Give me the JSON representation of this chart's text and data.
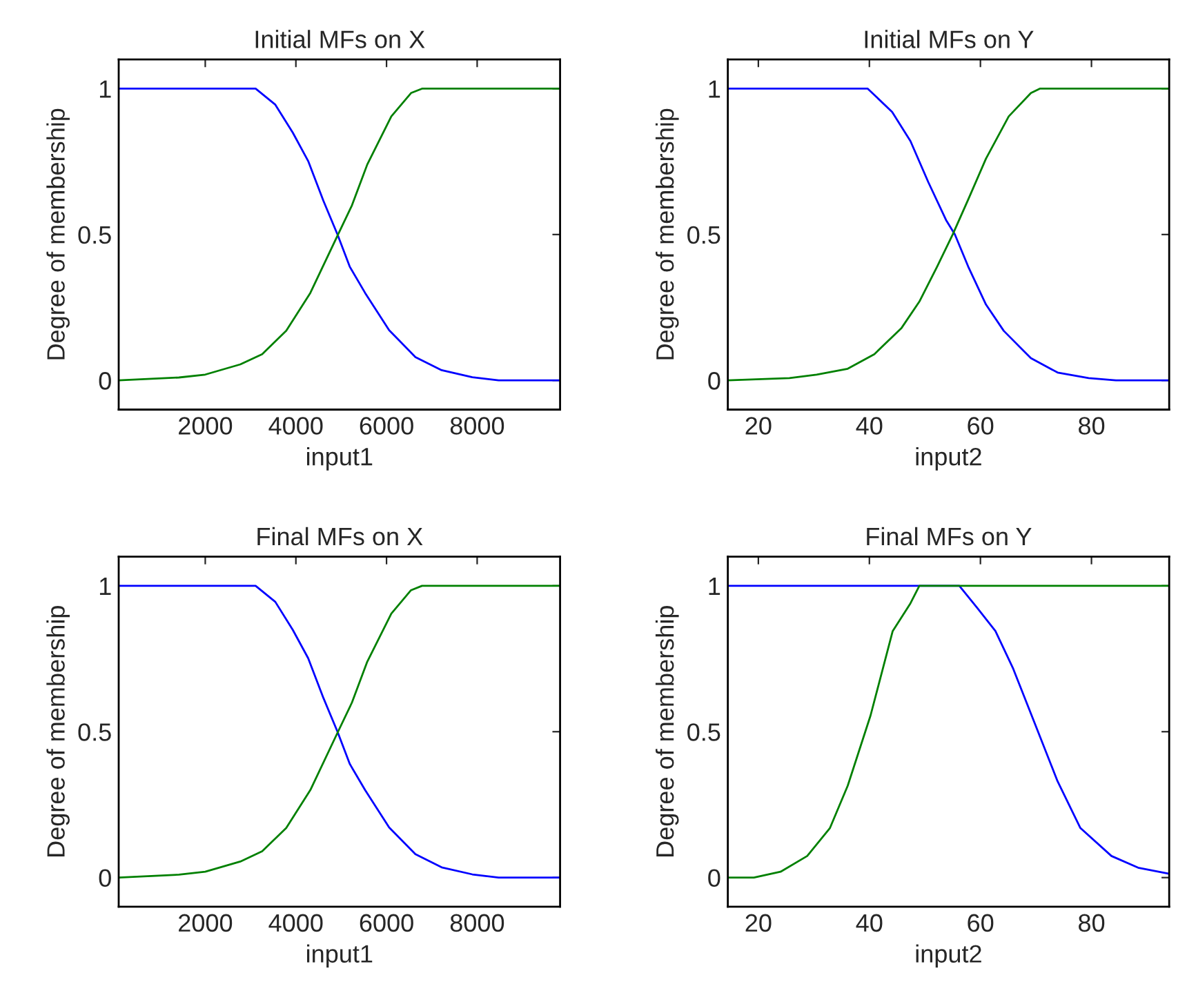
{
  "chart_data": [
    {
      "type": "line",
      "title": "Initial MFs on X",
      "xlabel": "input1",
      "ylabel": "Degree of membership",
      "xlim": [
        90,
        9830
      ],
      "xticks": [
        2000,
        4000,
        6000,
        8000
      ],
      "ylim": [
        -0.1,
        1.1
      ],
      "yticks": [
        0,
        0.5,
        1
      ],
      "grid": false,
      "legend": false,
      "series": [
        {
          "color": "#0000ff",
          "x": [
            90,
            3111,
            3546,
            3932,
            4271,
            4609,
            4918,
            5188,
            5527,
            6058,
            6638,
            7217,
            7894,
            8473,
            9830
          ],
          "values": [
            1,
            1,
            0.945,
            0.849,
            0.752,
            0.615,
            0.5,
            0.39,
            0.3,
            0.172,
            0.08,
            0.035,
            0.011,
            0,
            0
          ]
        },
        {
          "color": "#008000",
          "x": [
            90,
            1420,
            2000,
            2773,
            3256,
            3787,
            4319,
            4899,
            5237,
            5575,
            6106,
            6541,
            6783,
            9830
          ],
          "values": [
            0,
            0.01,
            0.02,
            0.055,
            0.09,
            0.17,
            0.3,
            0.49,
            0.6,
            0.74,
            0.905,
            0.985,
            1,
            1
          ]
        }
      ]
    },
    {
      "type": "line",
      "title": "Initial MFs on Y",
      "xlabel": "input2",
      "ylabel": "Degree of membership",
      "xlim": [
        14.5,
        94
      ],
      "xticks": [
        20,
        40,
        60,
        80
      ],
      "ylim": [
        -0.1,
        1.1
      ],
      "yticks": [
        0,
        0.5,
        1
      ],
      "grid": false,
      "legend": false,
      "series": [
        {
          "color": "#0000ff",
          "x": [
            14.5,
            39.7,
            44.1,
            47.4,
            50.6,
            53.8,
            55.4,
            57.8,
            61.0,
            64.2,
            69.1,
            73.9,
            79.5,
            84.4,
            94
          ],
          "values": [
            1,
            1,
            0.92,
            0.82,
            0.68,
            0.55,
            0.5,
            0.39,
            0.26,
            0.17,
            0.076,
            0.027,
            0.008,
            0,
            0
          ]
        },
        {
          "color": "#008000",
          "x": [
            14.5,
            25.6,
            30.5,
            36.1,
            40.9,
            45.8,
            49.0,
            52.2,
            55.0,
            57.8,
            61.0,
            65.1,
            69.1,
            70.7,
            94
          ],
          "values": [
            0,
            0.008,
            0.02,
            0.04,
            0.09,
            0.18,
            0.27,
            0.39,
            0.5,
            0.62,
            0.76,
            0.905,
            0.985,
            1,
            1
          ]
        }
      ]
    },
    {
      "type": "line",
      "title": "Final MFs on X",
      "xlabel": "input1",
      "ylabel": "Degree of membership",
      "xlim": [
        90,
        9830
      ],
      "xticks": [
        2000,
        4000,
        6000,
        8000
      ],
      "ylim": [
        -0.1,
        1.1
      ],
      "yticks": [
        0,
        0.5,
        1
      ],
      "grid": false,
      "legend": false,
      "series": [
        {
          "color": "#0000ff",
          "x": [
            90,
            3111,
            3546,
            3932,
            4271,
            4609,
            4918,
            5188,
            5527,
            6058,
            6638,
            7217,
            7894,
            8473,
            9830
          ],
          "values": [
            1,
            1,
            0.945,
            0.849,
            0.752,
            0.615,
            0.5,
            0.39,
            0.3,
            0.172,
            0.08,
            0.035,
            0.011,
            0,
            0
          ]
        },
        {
          "color": "#008000",
          "x": [
            90,
            1420,
            2000,
            2773,
            3256,
            3787,
            4319,
            4899,
            5237,
            5575,
            6106,
            6541,
            6783,
            9830
          ],
          "values": [
            0,
            0.01,
            0.02,
            0.055,
            0.09,
            0.17,
            0.3,
            0.49,
            0.6,
            0.74,
            0.905,
            0.985,
            1,
            1
          ]
        }
      ]
    },
    {
      "type": "line",
      "title": "Final MFs on Y",
      "xlabel": "input2",
      "ylabel": "Degree of membership",
      "xlim": [
        14.5,
        94
      ],
      "xticks": [
        20,
        40,
        60,
        80
      ],
      "ylim": [
        -0.1,
        1.1
      ],
      "yticks": [
        0,
        0.5,
        1
      ],
      "grid": false,
      "legend": false,
      "series": [
        {
          "color": "#0000ff",
          "x": [
            14.5,
            56.2,
            59.4,
            62.7,
            65.9,
            69.9,
            73.9,
            78.0,
            83.6,
            88.4,
            94
          ],
          "values": [
            1,
            1,
            0.925,
            0.845,
            0.716,
            0.523,
            0.33,
            0.17,
            0.074,
            0.034,
            0.013
          ]
        },
        {
          "color": "#008000",
          "x": [
            14.5,
            19.2,
            24.0,
            28.8,
            32.9,
            36.1,
            40.2,
            44.2,
            47.4,
            49.0,
            94
          ],
          "values": [
            0,
            0,
            0.02,
            0.074,
            0.17,
            0.315,
            0.555,
            0.845,
            0.94,
            1,
            1
          ]
        }
      ]
    }
  ]
}
